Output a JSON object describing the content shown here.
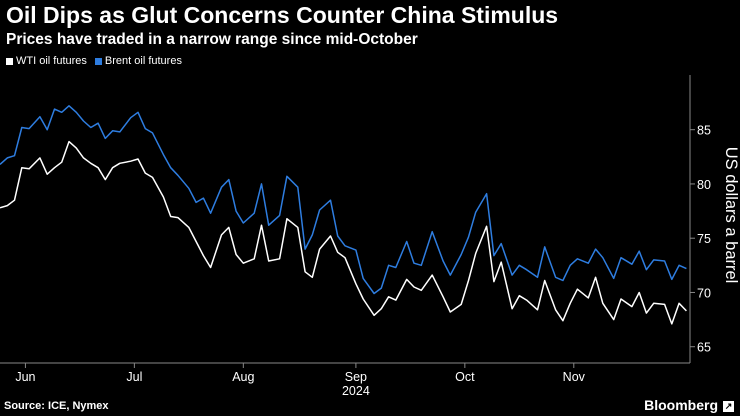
{
  "header": {
    "title": "Oil Dips as Glut Concerns Counter China Stimulus",
    "subtitle": "Prices have traded in a narrow range since mid-October"
  },
  "footer": {
    "source": "Source: ICE, Nymex",
    "brand": "Bloomberg",
    "brand_icon": "arrow-up-right-icon"
  },
  "colors": {
    "background": "#000000",
    "wti": "#ffffff",
    "brent": "#2e7de0",
    "axis": "#888888"
  },
  "chart_data": {
    "type": "line",
    "title": "Oil Dips as Glut Concerns Counter China Stimulus",
    "subtitle": "Prices have traded in a narrow range since mid-October",
    "ylabel": "US dollars a barrel",
    "xlabel": "2024",
    "ylim": [
      63.5,
      90.5
    ],
    "yticks": [
      65,
      70,
      75,
      80,
      85
    ],
    "x_range": [
      "2024-05-27",
      "2024-12-03"
    ],
    "x_ticks": [
      {
        "label": "Jun",
        "date": "2024-06-03"
      },
      {
        "label": "Jul",
        "date": "2024-07-03"
      },
      {
        "label": "Aug",
        "date": "2024-08-02"
      },
      {
        "label": "Sep",
        "date": "2024-09-02"
      },
      {
        "label": "Oct",
        "date": "2024-10-02"
      },
      {
        "label": "Nov",
        "date": "2024-11-01"
      }
    ],
    "x_year_label": "2024",
    "x": [
      "2024-05-27",
      "2024-05-29",
      "2024-05-31",
      "2024-06-02",
      "2024-06-04",
      "2024-06-07",
      "2024-06-09",
      "2024-06-11",
      "2024-06-13",
      "2024-06-15",
      "2024-06-17",
      "2024-06-19",
      "2024-06-21",
      "2024-06-23",
      "2024-06-25",
      "2024-06-27",
      "2024-06-29",
      "2024-07-02",
      "2024-07-04",
      "2024-07-06",
      "2024-07-08",
      "2024-07-11",
      "2024-07-13",
      "2024-07-15",
      "2024-07-18",
      "2024-07-20",
      "2024-07-22",
      "2024-07-24",
      "2024-07-27",
      "2024-07-29",
      "2024-07-31",
      "2024-08-02",
      "2024-08-05",
      "2024-08-07",
      "2024-08-09",
      "2024-08-12",
      "2024-08-14",
      "2024-08-17",
      "2024-08-19",
      "2024-08-21",
      "2024-08-23",
      "2024-08-26",
      "2024-08-28",
      "2024-08-30",
      "2024-09-02",
      "2024-09-04",
      "2024-09-07",
      "2024-09-09",
      "2024-09-11",
      "2024-09-13",
      "2024-09-16",
      "2024-09-18",
      "2024-09-20",
      "2024-09-23",
      "2024-09-26",
      "2024-09-28",
      "2024-10-01",
      "2024-10-03",
      "2024-10-05",
      "2024-10-08",
      "2024-10-10",
      "2024-10-12",
      "2024-10-15",
      "2024-10-17",
      "2024-10-19",
      "2024-10-22",
      "2024-10-24",
      "2024-10-27",
      "2024-10-29",
      "2024-10-31",
      "2024-11-02",
      "2024-11-05",
      "2024-11-07",
      "2024-11-09",
      "2024-11-12",
      "2024-11-14",
      "2024-11-17",
      "2024-11-19",
      "2024-11-21",
      "2024-11-23",
      "2024-11-26",
      "2024-11-28",
      "2024-11-30",
      "2024-12-02"
    ],
    "series": [
      {
        "name": "Brent oil futures",
        "color": "#2e7de0",
        "values": [
          81.8,
          82.4,
          82.6,
          85.2,
          85.1,
          86.2,
          85.0,
          86.9,
          86.6,
          87.2,
          86.6,
          85.8,
          85.2,
          85.6,
          84.2,
          84.9,
          84.8,
          86.1,
          86.6,
          85.1,
          84.7,
          82.7,
          81.5,
          80.8,
          79.6,
          78.3,
          78.7,
          77.3,
          79.7,
          80.4,
          77.5,
          76.4,
          77.3,
          80.0,
          76.2,
          77.1,
          80.7,
          79.7,
          74.0,
          75.3,
          77.6,
          78.5,
          75.2,
          74.3,
          73.9,
          71.3,
          69.9,
          70.4,
          72.5,
          72.3,
          74.7,
          72.7,
          72.5,
          75.6,
          72.9,
          71.6,
          73.5,
          75.1,
          77.4,
          79.1,
          73.4,
          74.5,
          71.6,
          72.5,
          72.1,
          71.4,
          74.2,
          71.4,
          71.1,
          72.5,
          73.1,
          72.7,
          74.0,
          73.2,
          71.3,
          73.2,
          72.6,
          73.8,
          72.1,
          73.0,
          72.9,
          71.2,
          72.5,
          72.2
        ]
      },
      {
        "name": "WTI oil futures",
        "color": "#ffffff",
        "values": [
          77.8,
          78.0,
          78.5,
          81.5,
          81.4,
          82.4,
          80.9,
          81.5,
          82.0,
          83.9,
          83.3,
          82.4,
          81.9,
          81.5,
          80.4,
          81.5,
          81.9,
          82.1,
          82.3,
          81.0,
          80.6,
          78.8,
          77.0,
          76.9,
          76.0,
          74.7,
          73.4,
          72.3,
          75.3,
          76.0,
          73.5,
          72.7,
          73.1,
          76.2,
          72.9,
          73.1,
          76.8,
          76.0,
          71.9,
          71.4,
          74.0,
          75.2,
          73.7,
          73.2,
          70.8,
          69.4,
          67.9,
          68.5,
          69.6,
          69.3,
          71.2,
          70.5,
          70.2,
          71.6,
          69.6,
          68.2,
          68.9,
          71.1,
          73.6,
          76.1,
          71.0,
          72.8,
          68.5,
          69.7,
          69.3,
          68.4,
          71.1,
          68.4,
          67.4,
          69.0,
          70.3,
          69.5,
          71.4,
          69.0,
          67.5,
          69.4,
          68.7,
          70.0,
          68.1,
          69.0,
          68.9,
          67.1,
          69.0,
          68.3
        ]
      }
    ]
  }
}
